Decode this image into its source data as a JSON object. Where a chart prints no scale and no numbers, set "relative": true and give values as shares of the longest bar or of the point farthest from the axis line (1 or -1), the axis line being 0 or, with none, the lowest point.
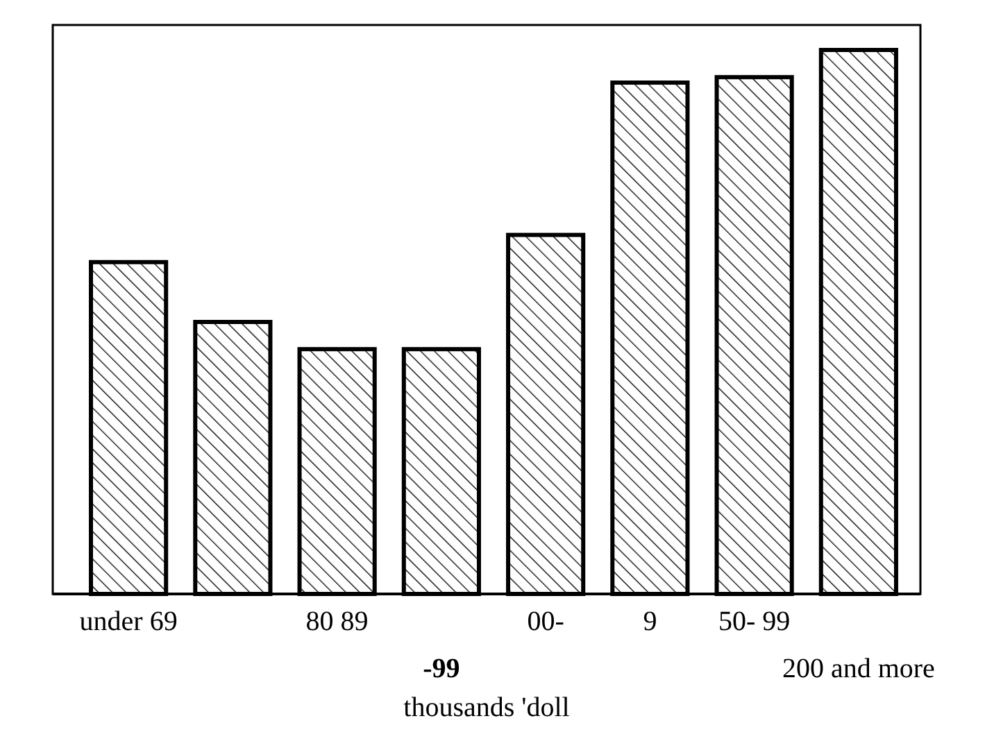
{
  "chart_data": {
    "type": "bar",
    "relative": true,
    "xlabel": "thousands 'doll",
    "categories": [
      "under 69",
      null,
      "80 89",
      "-99",
      "00-",
      "9",
      "50- 99",
      "200 and more"
    ],
    "values": [
      0.61,
      0.5,
      0.45,
      0.45,
      0.66,
      0.94,
      0.95,
      1
    ],
    "color": "#000000"
  }
}
